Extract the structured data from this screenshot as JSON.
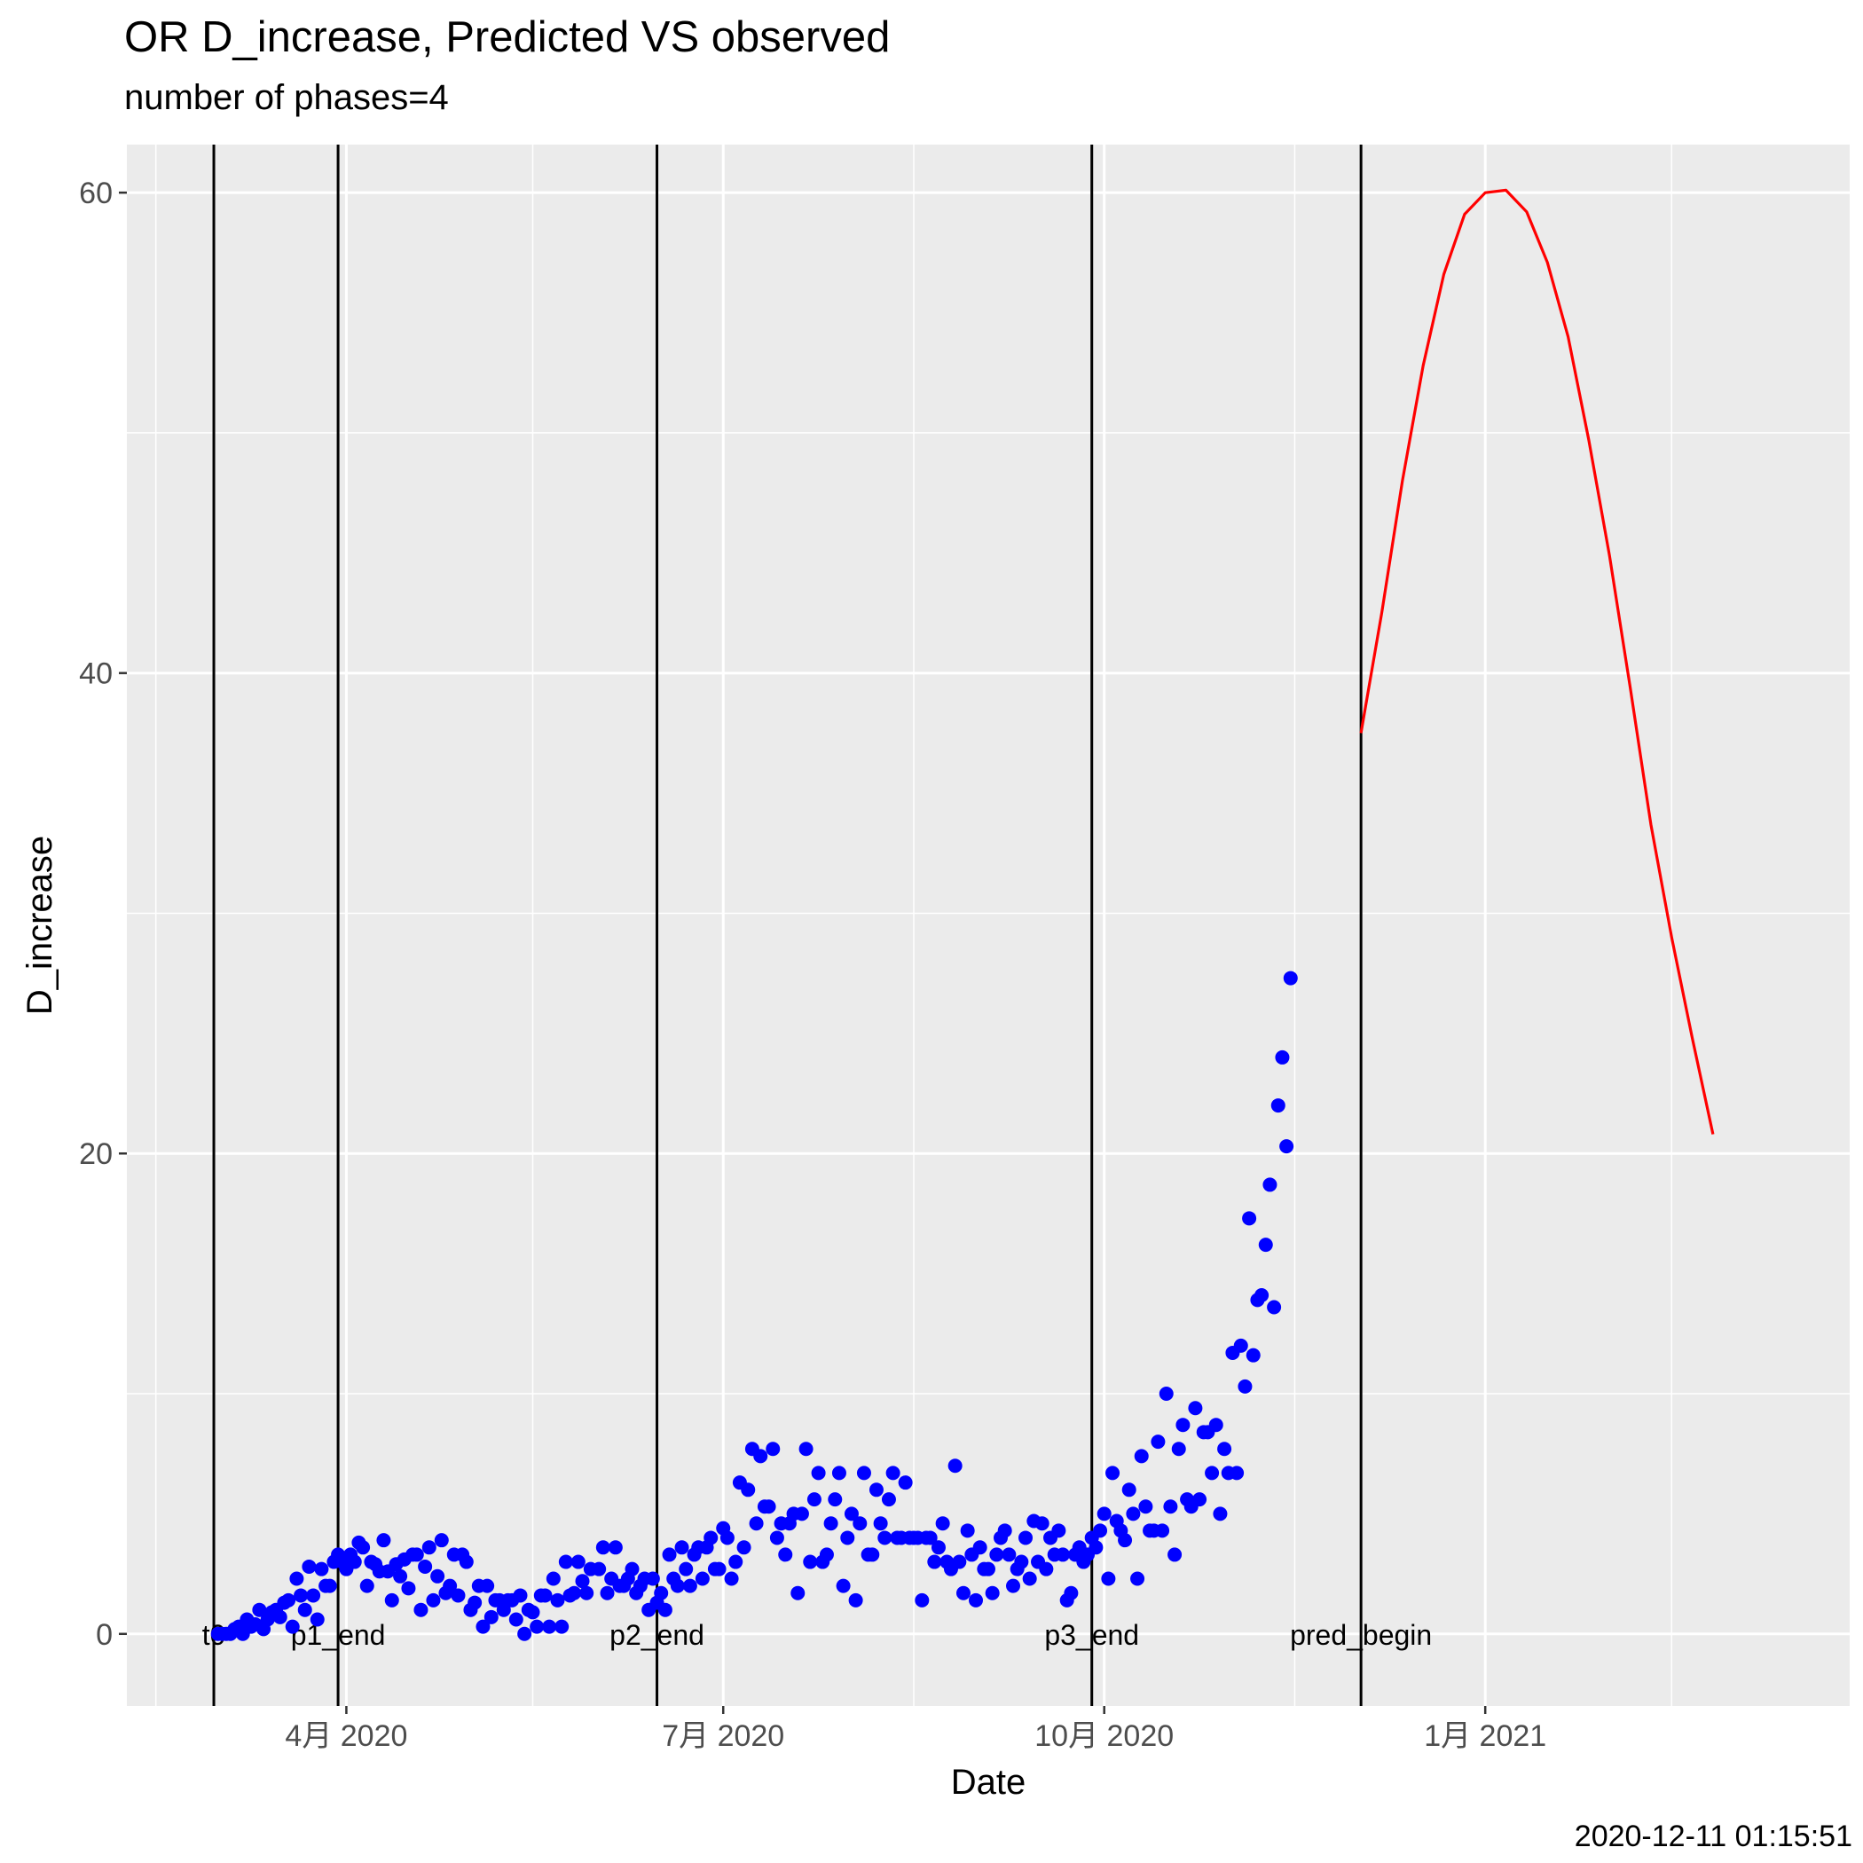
{
  "chart_data": {
    "type": "scatter",
    "title": "OR D_increase, Predicted VS observed",
    "subtitle": "number of phases=4",
    "xlabel": "Date",
    "ylabel": "D_increase",
    "caption": "2020-12-11 01:15:51",
    "xlim": [
      "2020-02-08",
      "2021-03-30"
    ],
    "ylim": [
      -3,
      62
    ],
    "x_ticks": [
      {
        "date": "2020-04-01",
        "label": "4月 2020"
      },
      {
        "date": "2020-07-01",
        "label": "7月 2020"
      },
      {
        "date": "2020-10-01",
        "label": "10月 2020"
      },
      {
        "date": "2021-01-01",
        "label": "1月 2021"
      }
    ],
    "x_minor_ticks": [
      "2020-02-15",
      "2020-05-16",
      "2020-08-16",
      "2020-11-16",
      "2021-02-15"
    ],
    "y_ticks": [
      0,
      20,
      40,
      60
    ],
    "y_minor_ticks": [
      10,
      30,
      50
    ],
    "grid": true,
    "phase_lines": [
      {
        "date": "2020-02-29",
        "label": "t0"
      },
      {
        "date": "2020-03-30",
        "label": "p1_end"
      },
      {
        "date": "2020-06-15",
        "label": "p2_end"
      },
      {
        "date": "2020-09-28",
        "label": "p3_end"
      },
      {
        "date": "2020-12-02",
        "label": "pred_begin"
      }
    ],
    "series": [
      {
        "kind": "observed",
        "color": "#0000ff",
        "points": [
          [
            "2020-03-01",
            0
          ],
          [
            "2020-03-02",
            0
          ],
          [
            "2020-03-03",
            0
          ],
          [
            "2020-03-04",
            0
          ],
          [
            "2020-03-05",
            0.2
          ],
          [
            "2020-03-06",
            0.3
          ],
          [
            "2020-03-07",
            0
          ],
          [
            "2020-03-08",
            0.6
          ],
          [
            "2020-03-09",
            0.3
          ],
          [
            "2020-03-10",
            0.4
          ],
          [
            "2020-03-11",
            1
          ],
          [
            "2020-03-12",
            0.2
          ],
          [
            "2020-03-13",
            0.6
          ],
          [
            "2020-03-14",
            0.9
          ],
          [
            "2020-03-15",
            1
          ],
          [
            "2020-03-16",
            0.7
          ],
          [
            "2020-03-17",
            1.3
          ],
          [
            "2020-03-18",
            1.4
          ],
          [
            "2020-03-19",
            0.3
          ],
          [
            "2020-03-20",
            2.3
          ],
          [
            "2020-03-21",
            1.6
          ],
          [
            "2020-03-22",
            1
          ],
          [
            "2020-03-23",
            2.8
          ],
          [
            "2020-03-24",
            1.6
          ],
          [
            "2020-03-25",
            0.6
          ],
          [
            "2020-03-26",
            2.7
          ],
          [
            "2020-03-27",
            2
          ],
          [
            "2020-03-28",
            2
          ],
          [
            "2020-03-29",
            3
          ],
          [
            "2020-03-30",
            3.3
          ],
          [
            "2020-03-31",
            3
          ],
          [
            "2020-04-01",
            2.7
          ],
          [
            "2020-04-02",
            3.3
          ],
          [
            "2020-04-03",
            3
          ],
          [
            "2020-04-04",
            3.8
          ],
          [
            "2020-04-05",
            3.6
          ],
          [
            "2020-04-06",
            2
          ],
          [
            "2020-04-07",
            3
          ],
          [
            "2020-04-08",
            2.9
          ],
          [
            "2020-04-09",
            2.6
          ],
          [
            "2020-04-10",
            3.9
          ],
          [
            "2020-04-11",
            2.6
          ],
          [
            "2020-04-12",
            1.4
          ],
          [
            "2020-04-13",
            2.9
          ],
          [
            "2020-04-14",
            2.4
          ],
          [
            "2020-04-15",
            3.1
          ],
          [
            "2020-04-16",
            1.9
          ],
          [
            "2020-04-17",
            3.3
          ],
          [
            "2020-04-18",
            3.3
          ],
          [
            "2020-04-19",
            1
          ],
          [
            "2020-04-20",
            2.8
          ],
          [
            "2020-04-21",
            3.6
          ],
          [
            "2020-04-22",
            1.4
          ],
          [
            "2020-04-23",
            2.4
          ],
          [
            "2020-04-24",
            3.9
          ],
          [
            "2020-04-25",
            1.7
          ],
          [
            "2020-04-26",
            2
          ],
          [
            "2020-04-27",
            3.3
          ],
          [
            "2020-04-28",
            1.6
          ],
          [
            "2020-04-29",
            3.3
          ],
          [
            "2020-04-30",
            3
          ],
          [
            "2020-05-01",
            1
          ],
          [
            "2020-05-02",
            1.3
          ],
          [
            "2020-05-03",
            2
          ],
          [
            "2020-05-04",
            0.3
          ],
          [
            "2020-05-05",
            2
          ],
          [
            "2020-05-06",
            0.7
          ],
          [
            "2020-05-07",
            1.4
          ],
          [
            "2020-05-08",
            1.4
          ],
          [
            "2020-05-09",
            1
          ],
          [
            "2020-05-10",
            1.4
          ],
          [
            "2020-05-11",
            1.4
          ],
          [
            "2020-05-12",
            0.6
          ],
          [
            "2020-05-13",
            1.6
          ],
          [
            "2020-05-14",
            0
          ],
          [
            "2020-05-15",
            1
          ],
          [
            "2020-05-16",
            0.9
          ],
          [
            "2020-05-17",
            0.3
          ],
          [
            "2020-05-18",
            1.6
          ],
          [
            "2020-05-19",
            1.6
          ],
          [
            "2020-05-20",
            0.3
          ],
          [
            "2020-05-21",
            2.3
          ],
          [
            "2020-05-22",
            1.4
          ],
          [
            "2020-05-23",
            0.3
          ],
          [
            "2020-05-24",
            3
          ],
          [
            "2020-05-25",
            1.6
          ],
          [
            "2020-05-26",
            1.7
          ],
          [
            "2020-05-27",
            3
          ],
          [
            "2020-05-28",
            2.2
          ],
          [
            "2020-05-29",
            1.7
          ],
          [
            "2020-05-30",
            2.7
          ],
          [
            "2020-06-01",
            2.7
          ],
          [
            "2020-06-02",
            3.6
          ],
          [
            "2020-06-03",
            1.7
          ],
          [
            "2020-06-04",
            2.3
          ],
          [
            "2020-06-05",
            3.6
          ],
          [
            "2020-06-06",
            2
          ],
          [
            "2020-06-07",
            2
          ],
          [
            "2020-06-08",
            2.3
          ],
          [
            "2020-06-09",
            2.7
          ],
          [
            "2020-06-10",
            1.7
          ],
          [
            "2020-06-11",
            2
          ],
          [
            "2020-06-12",
            2.3
          ],
          [
            "2020-06-13",
            1
          ],
          [
            "2020-06-14",
            2.3
          ],
          [
            "2020-06-15",
            1.3
          ],
          [
            "2020-06-16",
            1.7
          ],
          [
            "2020-06-17",
            1
          ],
          [
            "2020-06-18",
            3.3
          ],
          [
            "2020-06-19",
            2.3
          ],
          [
            "2020-06-20",
            2
          ],
          [
            "2020-06-21",
            3.6
          ],
          [
            "2020-06-22",
            2.7
          ],
          [
            "2020-06-23",
            2
          ],
          [
            "2020-06-24",
            3.3
          ],
          [
            "2020-06-25",
            3.6
          ],
          [
            "2020-06-26",
            2.3
          ],
          [
            "2020-06-27",
            3.6
          ],
          [
            "2020-06-28",
            4
          ],
          [
            "2020-06-29",
            2.7
          ],
          [
            "2020-06-30",
            2.7
          ],
          [
            "2020-07-01",
            4.4
          ],
          [
            "2020-07-02",
            4
          ],
          [
            "2020-07-03",
            2.3
          ],
          [
            "2020-07-04",
            3
          ],
          [
            "2020-07-05",
            6.3
          ],
          [
            "2020-07-06",
            3.6
          ],
          [
            "2020-07-07",
            6
          ],
          [
            "2020-07-08",
            7.7
          ],
          [
            "2020-07-09",
            4.6
          ],
          [
            "2020-07-10",
            7.4
          ],
          [
            "2020-07-11",
            5.3
          ],
          [
            "2020-07-12",
            5.3
          ],
          [
            "2020-07-13",
            7.7
          ],
          [
            "2020-07-14",
            4
          ],
          [
            "2020-07-15",
            4.6
          ],
          [
            "2020-07-16",
            3.3
          ],
          [
            "2020-07-17",
            4.6
          ],
          [
            "2020-07-18",
            5
          ],
          [
            "2020-07-19",
            1.7
          ],
          [
            "2020-07-20",
            5
          ],
          [
            "2020-07-21",
            7.7
          ],
          [
            "2020-07-22",
            3
          ],
          [
            "2020-07-23",
            5.6
          ],
          [
            "2020-07-24",
            6.7
          ],
          [
            "2020-07-25",
            3
          ],
          [
            "2020-07-26",
            3.3
          ],
          [
            "2020-07-27",
            4.6
          ],
          [
            "2020-07-28",
            5.6
          ],
          [
            "2020-07-29",
            6.7
          ],
          [
            "2020-07-30",
            2
          ],
          [
            "2020-07-31",
            4
          ],
          [
            "2020-08-01",
            5
          ],
          [
            "2020-08-02",
            1.4
          ],
          [
            "2020-08-03",
            4.6
          ],
          [
            "2020-08-04",
            6.7
          ],
          [
            "2020-08-05",
            3.3
          ],
          [
            "2020-08-06",
            3.3
          ],
          [
            "2020-08-07",
            6
          ],
          [
            "2020-08-08",
            4.6
          ],
          [
            "2020-08-09",
            4
          ],
          [
            "2020-08-10",
            5.6
          ],
          [
            "2020-08-11",
            6.7
          ],
          [
            "2020-08-12",
            4
          ],
          [
            "2020-08-13",
            4
          ],
          [
            "2020-08-14",
            6.3
          ],
          [
            "2020-08-15",
            4
          ],
          [
            "2020-08-16",
            4
          ],
          [
            "2020-08-17",
            4
          ],
          [
            "2020-08-18",
            1.4
          ],
          [
            "2020-08-19",
            4
          ],
          [
            "2020-08-20",
            4
          ],
          [
            "2020-08-21",
            3
          ],
          [
            "2020-08-22",
            3.6
          ],
          [
            "2020-08-23",
            4.6
          ],
          [
            "2020-08-24",
            3
          ],
          [
            "2020-08-25",
            2.7
          ],
          [
            "2020-08-26",
            7
          ],
          [
            "2020-08-27",
            3
          ],
          [
            "2020-08-28",
            1.7
          ],
          [
            "2020-08-29",
            4.3
          ],
          [
            "2020-08-30",
            3.3
          ],
          [
            "2020-08-31",
            1.4
          ],
          [
            "2020-09-01",
            3.6
          ],
          [
            "2020-09-02",
            2.7
          ],
          [
            "2020-09-03",
            2.7
          ],
          [
            "2020-09-04",
            1.7
          ],
          [
            "2020-09-05",
            3.3
          ],
          [
            "2020-09-06",
            4
          ],
          [
            "2020-09-07",
            4.3
          ],
          [
            "2020-09-08",
            3.3
          ],
          [
            "2020-09-09",
            2
          ],
          [
            "2020-09-10",
            2.7
          ],
          [
            "2020-09-11",
            3
          ],
          [
            "2020-09-12",
            4
          ],
          [
            "2020-09-13",
            2.3
          ],
          [
            "2020-09-14",
            4.7
          ],
          [
            "2020-09-15",
            3
          ],
          [
            "2020-09-16",
            4.6
          ],
          [
            "2020-09-17",
            2.7
          ],
          [
            "2020-09-18",
            4
          ],
          [
            "2020-09-19",
            3.3
          ],
          [
            "2020-09-20",
            4.3
          ],
          [
            "2020-09-21",
            3.3
          ],
          [
            "2020-09-22",
            1.4
          ],
          [
            "2020-09-23",
            1.7
          ],
          [
            "2020-09-24",
            3.3
          ],
          [
            "2020-09-25",
            3.6
          ],
          [
            "2020-09-26",
            3
          ],
          [
            "2020-09-27",
            3.3
          ],
          [
            "2020-09-28",
            4
          ],
          [
            "2020-09-29",
            3.6
          ],
          [
            "2020-09-30",
            4.3
          ],
          [
            "2020-10-01",
            5
          ],
          [
            "2020-10-02",
            2.3
          ],
          [
            "2020-10-03",
            6.7
          ],
          [
            "2020-10-04",
            4.7
          ],
          [
            "2020-10-05",
            4.3
          ],
          [
            "2020-10-06",
            3.9
          ],
          [
            "2020-10-07",
            6
          ],
          [
            "2020-10-08",
            5
          ],
          [
            "2020-10-09",
            2.3
          ],
          [
            "2020-10-10",
            7.4
          ],
          [
            "2020-10-11",
            5.3
          ],
          [
            "2020-10-12",
            4.3
          ],
          [
            "2020-10-13",
            4.3
          ],
          [
            "2020-10-14",
            8
          ],
          [
            "2020-10-15",
            4.3
          ],
          [
            "2020-10-16",
            10
          ],
          [
            "2020-10-17",
            5.3
          ],
          [
            "2020-10-18",
            3.3
          ],
          [
            "2020-10-19",
            7.7
          ],
          [
            "2020-10-20",
            8.7
          ],
          [
            "2020-10-21",
            5.6
          ],
          [
            "2020-10-22",
            5.3
          ],
          [
            "2020-10-23",
            9.4
          ],
          [
            "2020-10-24",
            5.6
          ],
          [
            "2020-10-25",
            8.4
          ],
          [
            "2020-10-26",
            8.4
          ],
          [
            "2020-10-27",
            6.7
          ],
          [
            "2020-10-28",
            8.7
          ],
          [
            "2020-10-29",
            5
          ],
          [
            "2020-10-30",
            7.7
          ],
          [
            "2020-10-31",
            6.7
          ],
          [
            "2020-11-01",
            11.7
          ],
          [
            "2020-11-02",
            6.7
          ],
          [
            "2020-11-03",
            12
          ],
          [
            "2020-11-04",
            10.3
          ],
          [
            "2020-11-05",
            17.3
          ],
          [
            "2020-11-06",
            11.6
          ],
          [
            "2020-11-07",
            13.9
          ],
          [
            "2020-11-08",
            14.1
          ],
          [
            "2020-11-09",
            16.2
          ],
          [
            "2020-11-10",
            18.7
          ],
          [
            "2020-11-11",
            13.6
          ],
          [
            "2020-11-12",
            22
          ],
          [
            "2020-11-13",
            24
          ],
          [
            "2020-11-14",
            20.3
          ],
          [
            "2020-11-15",
            27.3
          ]
        ]
      },
      {
        "kind": "predicted",
        "color": "#ff0000",
        "points": [
          [
            "2020-12-02",
            37.5
          ],
          [
            "2020-12-07",
            42.5
          ],
          [
            "2020-12-12",
            48
          ],
          [
            "2020-12-17",
            52.8
          ],
          [
            "2020-12-22",
            56.6
          ],
          [
            "2020-12-27",
            59.1
          ],
          [
            "2021-01-01",
            60
          ],
          [
            "2021-01-06",
            60.1
          ],
          [
            "2021-01-11",
            59.2
          ],
          [
            "2021-01-16",
            57.1
          ],
          [
            "2021-01-21",
            54
          ],
          [
            "2021-01-26",
            49.7
          ],
          [
            "2021-01-31",
            44.9
          ],
          [
            "2021-02-05",
            39.4
          ],
          [
            "2021-02-10",
            33.7
          ],
          [
            "2021-02-15",
            29
          ],
          [
            "2021-02-20",
            24.8
          ],
          [
            "2021-02-25",
            20.8
          ]
        ]
      }
    ]
  }
}
